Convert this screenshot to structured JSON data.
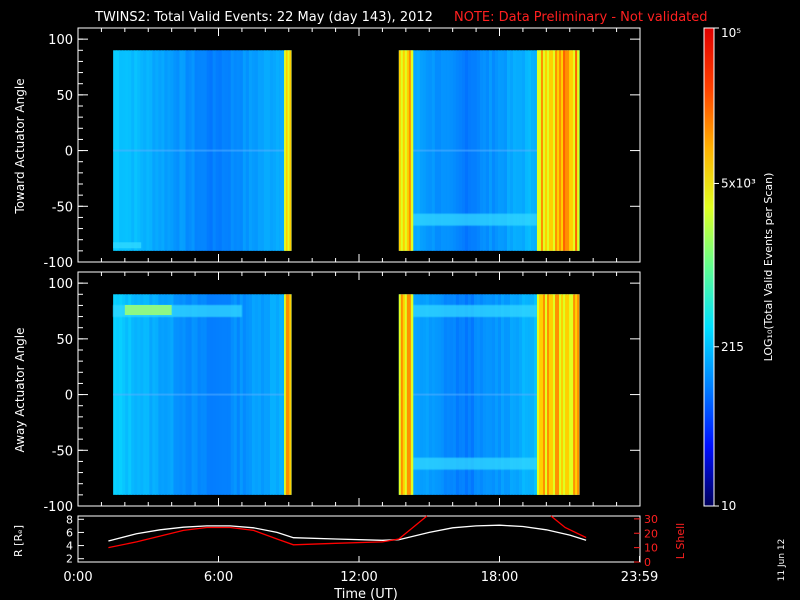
{
  "header": {
    "title": "TWINS2: Total Valid Events: 22 May (day 143), 2012",
    "note": "NOTE: Data Preliminary - Not validated"
  },
  "footer": {
    "xlabel": "Time (UT)",
    "date_stamp": "11 Jun 12"
  },
  "colorbar": {
    "label": "LOG₁₀(Total Valid Events per Scan)",
    "ticks": [
      "10",
      "215",
      "5x10³",
      "10⁵"
    ],
    "tick_values": [
      10,
      215,
      5000,
      100000
    ],
    "range": [
      10,
      100000
    ],
    "colors": [
      "#00005a",
      "#0010ff",
      "#0080ff",
      "#00e0ff",
      "#60ff90",
      "#e0ff20",
      "#ffb000",
      "#ff4000",
      "#e00000"
    ]
  },
  "chart_data": [
    {
      "type": "heatmap",
      "id": "toward",
      "ylabel": "Toward Actuator Angle",
      "ylim": [
        -100,
        110
      ],
      "yticks": [
        100,
        50,
        0,
        -50,
        -100
      ],
      "xlim": [
        0,
        24
      ],
      "data_ranges": [
        [
          1.5,
          9.1
        ],
        [
          13.7,
          21.4
        ]
      ],
      "angle_range": [
        -90,
        90
      ],
      "band": {
        "angle": -62,
        "comment_free": true
      },
      "orange_segments": [
        [
          8.8,
          9.1
        ],
        [
          13.7,
          14.3
        ],
        [
          19.6,
          21.4
        ]
      ]
    },
    {
      "type": "heatmap",
      "id": "away",
      "ylabel": "Away Actuator Angle",
      "ylim": [
        -100,
        110
      ],
      "yticks": [
        100,
        50,
        0,
        -50,
        -100
      ],
      "xlim": [
        0,
        24
      ],
      "data_ranges": [
        [
          1.5,
          9.1
        ],
        [
          13.7,
          21.4
        ]
      ],
      "angle_range": [
        -90,
        90
      ],
      "band": {
        "angle": 75
      },
      "band2": {
        "angle": -62
      },
      "orange_segments": [
        [
          8.8,
          9.1
        ],
        [
          13.7,
          14.3
        ],
        [
          19.6,
          21.4
        ]
      ]
    },
    {
      "type": "line",
      "id": "orbit",
      "ylabel_left": "R [Rₑ]",
      "ylabel_right": "L Shell",
      "left_ticks": [
        "8",
        "6",
        "4",
        "2"
      ],
      "left_tick_values": [
        8,
        6,
        4,
        2
      ],
      "right_ticks": [
        "30",
        "20",
        "10",
        "0"
      ],
      "right_tick_values": [
        30,
        20,
        10,
        0
      ],
      "ylim_left": [
        1.5,
        8.5
      ],
      "ylim_right": [
        0,
        32
      ],
      "xticks": [
        "0:00",
        "6:00",
        "12:00",
        "18:00",
        "23:59"
      ],
      "xtick_values": [
        0,
        6,
        12,
        18,
        23.98
      ],
      "series": [
        {
          "name": "R",
          "color": "#ffffff",
          "x": [
            1.3,
            2.5,
            3.5,
            4.5,
            5.5,
            6.5,
            7.5,
            8.5,
            9.2,
            11,
            13,
            13.7,
            15,
            16,
            17,
            18,
            19,
            20,
            21,
            21.7
          ],
          "y": [
            4.7,
            5.8,
            6.4,
            6.8,
            7.0,
            7.0,
            6.7,
            6.0,
            5.2,
            5.0,
            4.8,
            4.9,
            6.0,
            6.7,
            7.0,
            7.1,
            6.9,
            6.4,
            5.6,
            4.8
          ]
        },
        {
          "name": "L Shell",
          "color": "#ff0000",
          "x": [
            1.3,
            2.5,
            3.5,
            4.5,
            5.5,
            6.5,
            7.5,
            8.5,
            9.2,
            11,
            13,
            13.7,
            14.3,
            14.9
          ],
          "y": [
            10,
            14,
            18,
            22,
            24,
            24,
            22,
            16,
            12,
            13,
            14,
            16,
            24,
            32
          ]
        },
        {
          "name": "L Shell 2",
          "color": "#ff0000",
          "x": [
            20.2,
            20.8,
            21.7
          ],
          "y": [
            32,
            24,
            17
          ]
        }
      ]
    }
  ]
}
